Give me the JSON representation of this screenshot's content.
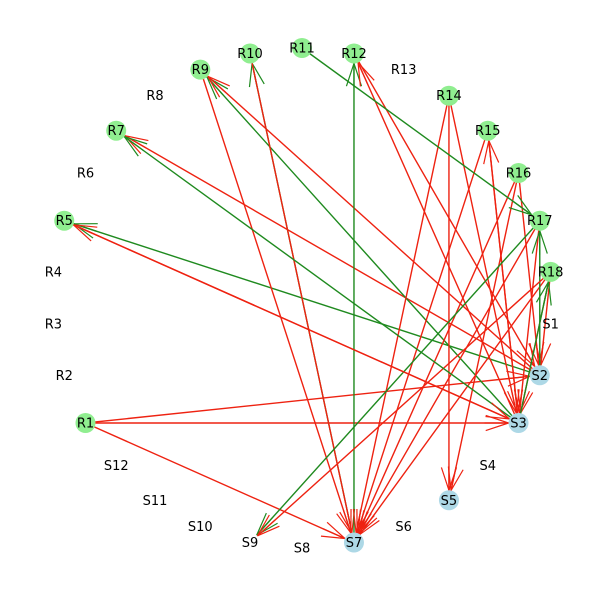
{
  "colors": {
    "regulator_node": "#90ee90",
    "target_node": "#add8e6",
    "edge_green": "#1f8a1f",
    "edge_red": "#ee2211"
  },
  "nodes": [
    {
      "id": "R1",
      "label": "R1",
      "group": "regulator"
    },
    {
      "id": "R2",
      "label": "R2",
      "group": "none"
    },
    {
      "id": "R3",
      "label": "R3",
      "group": "none"
    },
    {
      "id": "R4",
      "label": "R4",
      "group": "none"
    },
    {
      "id": "R5",
      "label": "R5",
      "group": "regulator"
    },
    {
      "id": "R6",
      "label": "R6",
      "group": "none"
    },
    {
      "id": "R7",
      "label": "R7",
      "group": "regulator"
    },
    {
      "id": "R8",
      "label": "R8",
      "group": "none"
    },
    {
      "id": "R9",
      "label": "R9",
      "group": "regulator"
    },
    {
      "id": "R10",
      "label": "R10",
      "group": "regulator"
    },
    {
      "id": "R11",
      "label": "R11",
      "group": "regulator"
    },
    {
      "id": "R12",
      "label": "R12",
      "group": "regulator"
    },
    {
      "id": "R13",
      "label": "R13",
      "group": "none"
    },
    {
      "id": "R14",
      "label": "R14",
      "group": "regulator"
    },
    {
      "id": "R15",
      "label": "R15",
      "group": "regulator"
    },
    {
      "id": "R16",
      "label": "R16",
      "group": "regulator"
    },
    {
      "id": "R17",
      "label": "R17",
      "group": "regulator"
    },
    {
      "id": "R18",
      "label": "R18",
      "group": "regulator"
    },
    {
      "id": "S1",
      "label": "S1",
      "group": "none"
    },
    {
      "id": "S2",
      "label": "S2",
      "group": "target"
    },
    {
      "id": "S3",
      "label": "S3",
      "group": "target"
    },
    {
      "id": "S4",
      "label": "S4",
      "group": "none"
    },
    {
      "id": "S5",
      "label": "S5",
      "group": "target"
    },
    {
      "id": "S6",
      "label": "S6",
      "group": "none"
    },
    {
      "id": "S7",
      "label": "S7",
      "group": "target"
    },
    {
      "id": "S8",
      "label": "S8",
      "group": "none"
    },
    {
      "id": "S9",
      "label": "S9",
      "group": "none"
    },
    {
      "id": "S10",
      "label": "S10",
      "group": "none"
    },
    {
      "id": "S11",
      "label": "S11",
      "group": "none"
    },
    {
      "id": "S12",
      "label": "S12",
      "group": "none"
    }
  ],
  "edges": [
    {
      "from": "R1",
      "to": "S3",
      "color": "red"
    },
    {
      "from": "R1",
      "to": "S2",
      "color": "red"
    },
    {
      "from": "R1",
      "to": "S7",
      "color": "red"
    },
    {
      "from": "S2",
      "to": "R5",
      "color": "green"
    },
    {
      "from": "S3",
      "to": "R5",
      "color": "red"
    },
    {
      "from": "S2",
      "to": "R7",
      "color": "red"
    },
    {
      "from": "S3",
      "to": "R9",
      "color": "green"
    },
    {
      "from": "S2",
      "to": "R9",
      "color": "red"
    },
    {
      "from": "S7",
      "to": "R10",
      "color": "green"
    },
    {
      "from": "R10",
      "to": "S7",
      "color": "red"
    },
    {
      "from": "S7",
      "to": "R12",
      "color": "green"
    },
    {
      "from": "R9",
      "to": "S7",
      "color": "red"
    },
    {
      "from": "S3",
      "to": "R12",
      "color": "red"
    },
    {
      "from": "R12",
      "to": "S2",
      "color": "red"
    },
    {
      "from": "R14",
      "to": "S7",
      "color": "red"
    },
    {
      "from": "R14",
      "to": "S3",
      "color": "red"
    },
    {
      "from": "R14",
      "to": "S5",
      "color": "red"
    },
    {
      "from": "R15",
      "to": "S7",
      "color": "red"
    },
    {
      "from": "R15",
      "to": "S3",
      "color": "red"
    },
    {
      "from": "S3",
      "to": "R15",
      "color": "red"
    },
    {
      "from": "R16",
      "to": "S7",
      "color": "red"
    },
    {
      "from": "R16",
      "to": "S2",
      "color": "red"
    },
    {
      "from": "R16",
      "to": "S5",
      "color": "red"
    },
    {
      "from": "R17",
      "to": "S7",
      "color": "red"
    },
    {
      "from": "R17",
      "to": "S3",
      "color": "red"
    },
    {
      "from": "R18",
      "to": "S7",
      "color": "red"
    },
    {
      "from": "R18",
      "to": "S2",
      "color": "red"
    },
    {
      "from": "R18",
      "to": "S3",
      "color": "red"
    },
    {
      "from": "S3",
      "to": "R18",
      "color": "green"
    },
    {
      "from": "S2",
      "to": "R17",
      "color": "green"
    },
    {
      "from": "R17",
      "to": "S9",
      "color": "green"
    },
    {
      "from": "R18",
      "to": "S9",
      "color": "red"
    },
    {
      "from": "R11",
      "to": "R17",
      "color": "green"
    },
    {
      "from": "S3",
      "to": "R7",
      "color": "green"
    },
    {
      "from": "R5",
      "to": "S3",
      "color": "red"
    }
  ]
}
